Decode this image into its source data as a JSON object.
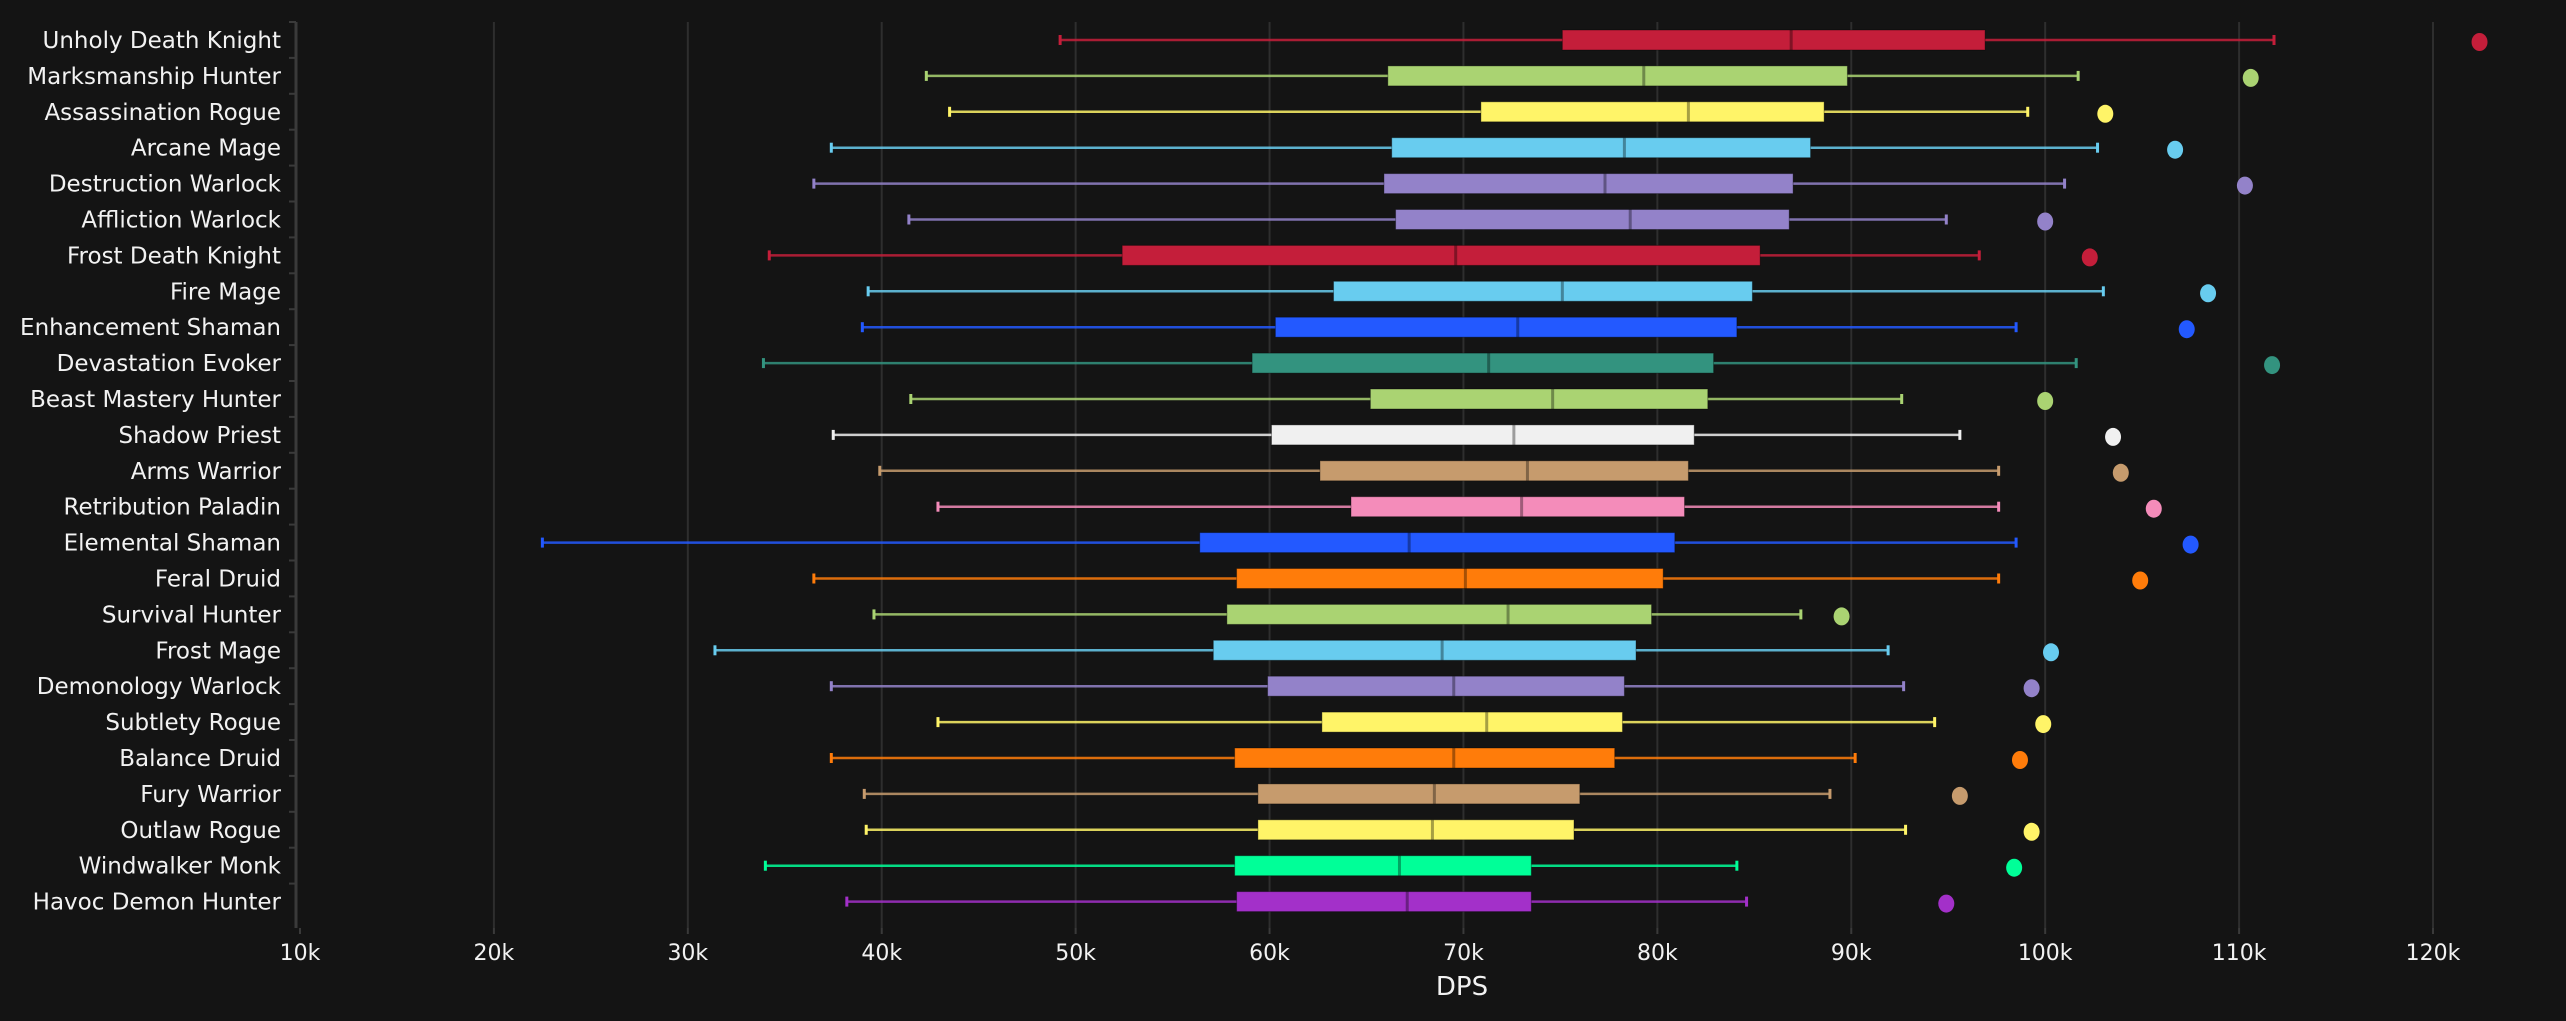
{
  "chart_data": {
    "type": "boxplot",
    "orientation": "horizontal",
    "title": "",
    "xlabel": "DPS",
    "ylabel": "",
    "xlim": [
      10000,
      125000
    ],
    "xticks": [
      10000,
      20000,
      30000,
      40000,
      50000,
      60000,
      70000,
      80000,
      90000,
      100000,
      110000,
      120000
    ],
    "xtick_labels": [
      "10k",
      "20k",
      "30k",
      "40k",
      "50k",
      "60k",
      "70k",
      "80k",
      "90k",
      "100k",
      "110k",
      "120k"
    ],
    "grid": true,
    "legend": "none",
    "series": [
      {
        "name": "Unholy Death Knight",
        "color": "#C41E3A",
        "min": 49200,
        "q1": 75100,
        "median": 86900,
        "q3": 96900,
        "max": 111800,
        "outliers": [
          122400
        ]
      },
      {
        "name": "Marksmanship Hunter",
        "color": "#AAD372",
        "min": 42300,
        "q1": 66100,
        "median": 79300,
        "q3": 89800,
        "max": 101700,
        "outliers": [
          110600
        ]
      },
      {
        "name": "Assassination Rogue",
        "color": "#FFF468",
        "min": 43500,
        "q1": 70900,
        "median": 81600,
        "q3": 88600,
        "max": 99100,
        "outliers": [
          103100
        ]
      },
      {
        "name": "Arcane Mage",
        "color": "#68CCEF",
        "min": 37400,
        "q1": 66300,
        "median": 78300,
        "q3": 87900,
        "max": 102700,
        "outliers": [
          106700
        ]
      },
      {
        "name": "Destruction Warlock",
        "color": "#9382C9",
        "min": 36500,
        "q1": 65900,
        "median": 77300,
        "q3": 87000,
        "max": 101000,
        "outliers": [
          110300
        ]
      },
      {
        "name": "Affliction Warlock",
        "color": "#9382C9",
        "min": 41400,
        "q1": 66500,
        "median": 78600,
        "q3": 86800,
        "max": 94900,
        "outliers": [
          100000
        ]
      },
      {
        "name": "Frost Death Knight",
        "color": "#C41E3A",
        "min": 34200,
        "q1": 52400,
        "median": 69600,
        "q3": 85300,
        "max": 96600,
        "outliers": [
          102300
        ]
      },
      {
        "name": "Fire Mage",
        "color": "#68CCEF",
        "min": 39300,
        "q1": 63300,
        "median": 75100,
        "q3": 84900,
        "max": 103000,
        "outliers": [
          108400
        ]
      },
      {
        "name": "Enhancement Shaman",
        "color": "#2359FF",
        "min": 39000,
        "q1": 60300,
        "median": 72800,
        "q3": 84100,
        "max": 98500,
        "outliers": [
          107300
        ]
      },
      {
        "name": "Devastation Evoker",
        "color": "#33937F",
        "min": 33900,
        "q1": 59100,
        "median": 71300,
        "q3": 82900,
        "max": 101600,
        "outliers": [
          111700
        ]
      },
      {
        "name": "Beast Mastery Hunter",
        "color": "#AAD372",
        "min": 41500,
        "q1": 65200,
        "median": 74600,
        "q3": 82600,
        "max": 92600,
        "outliers": [
          100000
        ]
      },
      {
        "name": "Shadow Priest",
        "color": "#F0F0F0",
        "min": 37500,
        "q1": 60100,
        "median": 72600,
        "q3": 81900,
        "max": 95600,
        "outliers": [
          103500
        ]
      },
      {
        "name": "Arms Warrior",
        "color": "#C69B6D",
        "min": 39900,
        "q1": 62600,
        "median": 73300,
        "q3": 81600,
        "max": 97600,
        "outliers": [
          103900
        ]
      },
      {
        "name": "Retribution Paladin",
        "color": "#F48CBA",
        "min": 42900,
        "q1": 64200,
        "median": 73000,
        "q3": 81400,
        "max": 97600,
        "outliers": [
          105600
        ]
      },
      {
        "name": "Elemental Shaman",
        "color": "#2359FF",
        "min": 22500,
        "q1": 56400,
        "median": 67200,
        "q3": 80900,
        "max": 98500,
        "outliers": [
          107500
        ]
      },
      {
        "name": "Feral Druid",
        "color": "#FF7C0A",
        "min": 36500,
        "q1": 58300,
        "median": 70100,
        "q3": 80300,
        "max": 97600,
        "outliers": [
          104900
        ]
      },
      {
        "name": "Survival Hunter",
        "color": "#AAD372",
        "min": 39600,
        "q1": 57800,
        "median": 72300,
        "q3": 79700,
        "max": 87400,
        "outliers": [
          89500
        ]
      },
      {
        "name": "Frost Mage",
        "color": "#68CCEF",
        "min": 31400,
        "q1": 57100,
        "median": 68900,
        "q3": 78900,
        "max": 91900,
        "outliers": [
          100300
        ]
      },
      {
        "name": "Demonology Warlock",
        "color": "#9382C9",
        "min": 37400,
        "q1": 59900,
        "median": 69500,
        "q3": 78300,
        "max": 92700,
        "outliers": [
          99300
        ]
      },
      {
        "name": "Subtlety Rogue",
        "color": "#FFF468",
        "min": 42900,
        "q1": 62700,
        "median": 71200,
        "q3": 78200,
        "max": 94300,
        "outliers": [
          99900
        ]
      },
      {
        "name": "Balance Druid",
        "color": "#FF7C0A",
        "min": 37400,
        "q1": 58200,
        "median": 69500,
        "q3": 77800,
        "max": 90200,
        "outliers": [
          98700
        ]
      },
      {
        "name": "Fury Warrior",
        "color": "#C69B6D",
        "min": 39100,
        "q1": 59400,
        "median": 68500,
        "q3": 76000,
        "max": 88900,
        "outliers": [
          95600
        ]
      },
      {
        "name": "Outlaw Rogue",
        "color": "#FFF468",
        "min": 39200,
        "q1": 59400,
        "median": 68400,
        "q3": 75700,
        "max": 92800,
        "outliers": [
          99300
        ]
      },
      {
        "name": "Windwalker Monk",
        "color": "#00FF98",
        "min": 34000,
        "q1": 58200,
        "median": 66700,
        "q3": 73500,
        "max": 84100,
        "outliers": [
          98400
        ]
      },
      {
        "name": "Havoc Demon Hunter",
        "color": "#A330C9",
        "min": 38200,
        "q1": 58300,
        "median": 67100,
        "q3": 73500,
        "max": 84600,
        "outliers": [
          94900
        ]
      }
    ]
  },
  "colors": {
    "background": "#141414",
    "grid": "#2e2e2e",
    "axis": "#3a3a3a",
    "text": "#f2f2f2"
  }
}
